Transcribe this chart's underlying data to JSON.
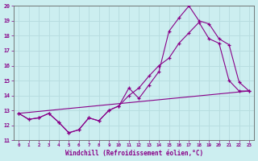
{
  "xlabel": "Windchill (Refroidissement éolien,°C)",
  "xlim": [
    -0.5,
    23.5
  ],
  "ylim": [
    11,
    20
  ],
  "yticks": [
    11,
    12,
    13,
    14,
    15,
    16,
    17,
    18,
    19,
    20
  ],
  "xticks": [
    0,
    1,
    2,
    3,
    4,
    5,
    6,
    7,
    8,
    9,
    10,
    11,
    12,
    13,
    14,
    15,
    16,
    17,
    18,
    19,
    20,
    21,
    22,
    23
  ],
  "background_color": "#cceef0",
  "line_color": "#880088",
  "grid_color": "#b8dde0",
  "line1_x": [
    0,
    1,
    2,
    3,
    4,
    5,
    6,
    7,
    8,
    9,
    10,
    11,
    12,
    13,
    14,
    15,
    16,
    17,
    18,
    19,
    20,
    21,
    22,
    23
  ],
  "line1_y": [
    12.8,
    12.4,
    12.5,
    12.8,
    12.2,
    11.5,
    11.7,
    12.5,
    12.3,
    13.0,
    13.3,
    14.5,
    13.8,
    14.7,
    15.6,
    18.3,
    19.2,
    20.0,
    19.0,
    18.8,
    17.8,
    17.4,
    14.9,
    14.3
  ],
  "line2_x": [
    0,
    1,
    2,
    3,
    4,
    5,
    6,
    7,
    8,
    9,
    10,
    11,
    12,
    13,
    14,
    15,
    16,
    17,
    18,
    19,
    20,
    21,
    22,
    23
  ],
  "line2_y": [
    12.8,
    12.4,
    12.5,
    12.8,
    12.2,
    11.5,
    11.7,
    12.5,
    12.3,
    13.0,
    13.3,
    14.0,
    14.5,
    15.3,
    16.0,
    16.5,
    17.5,
    18.2,
    18.9,
    17.8,
    17.5,
    15.0,
    14.3,
    14.3
  ],
  "line3_x": [
    0,
    23
  ],
  "line3_y": [
    12.8,
    14.3
  ]
}
